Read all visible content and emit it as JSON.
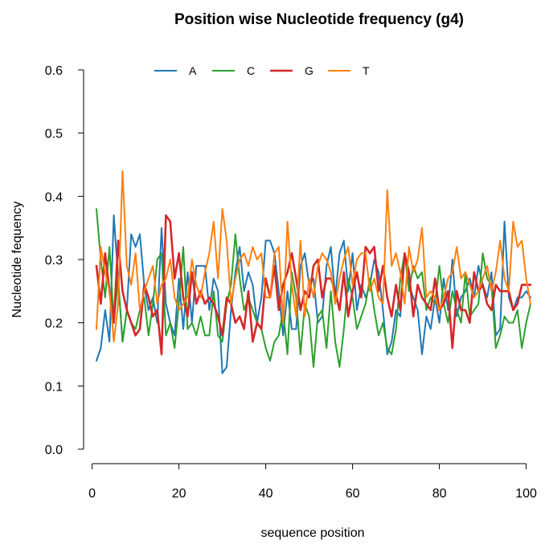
{
  "chart_data": {
    "type": "line",
    "title": "Position wise Nucleotide frequency (g4)",
    "xlabel": "sequence position",
    "ylabel": "Nucleotide fequency",
    "xlim": [
      1,
      101
    ],
    "ylim": [
      0,
      0.6
    ],
    "x_ticks": [
      0,
      20,
      40,
      60,
      80,
      100
    ],
    "y_ticks": [
      0.0,
      0.1,
      0.2,
      0.3,
      0.4,
      0.5,
      0.6
    ],
    "x_tick_labels": [
      "0",
      "20",
      "40",
      "60",
      "80",
      "100"
    ],
    "y_tick_labels": [
      "0.0",
      "0.1",
      "0.2",
      "0.3",
      "0.4",
      "0.5",
      "0.6"
    ],
    "grid": false,
    "legend_position": "top",
    "x": [
      1,
      2,
      3,
      4,
      5,
      6,
      7,
      8,
      9,
      10,
      11,
      12,
      13,
      14,
      15,
      16,
      17,
      18,
      19,
      20,
      21,
      22,
      23,
      24,
      25,
      26,
      27,
      28,
      29,
      30,
      31,
      32,
      33,
      34,
      35,
      36,
      37,
      38,
      39,
      40,
      41,
      42,
      43,
      44,
      45,
      46,
      47,
      48,
      49,
      50,
      51,
      52,
      53,
      54,
      55,
      56,
      57,
      58,
      59,
      60,
      61,
      62,
      63,
      64,
      65,
      66,
      67,
      68,
      69,
      70,
      71,
      72,
      73,
      74,
      75,
      76,
      77,
      78,
      79,
      80,
      81,
      82,
      83,
      84,
      85,
      86,
      87,
      88,
      89,
      90,
      91,
      92,
      93,
      94,
      95,
      96,
      97,
      98,
      99,
      100,
      101
    ],
    "series": [
      {
        "name": "A",
        "color": "#1f77b4",
        "values": [
          0.14,
          0.16,
          0.22,
          0.17,
          0.37,
          0.27,
          0.17,
          0.22,
          0.34,
          0.32,
          0.34,
          0.26,
          0.22,
          0.24,
          0.2,
          0.35,
          0.23,
          0.2,
          0.18,
          0.27,
          0.19,
          0.28,
          0.2,
          0.29,
          0.29,
          0.29,
          0.22,
          0.27,
          0.25,
          0.12,
          0.13,
          0.22,
          0.28,
          0.32,
          0.25,
          0.28,
          0.26,
          0.2,
          0.24,
          0.33,
          0.33,
          0.31,
          0.25,
          0.18,
          0.25,
          0.19,
          0.19,
          0.29,
          0.31,
          0.26,
          0.27,
          0.2,
          0.21,
          0.29,
          0.32,
          0.24,
          0.31,
          0.33,
          0.25,
          0.31,
          0.22,
          0.26,
          0.24,
          0.26,
          0.3,
          0.28,
          0.22,
          0.15,
          0.17,
          0.22,
          0.21,
          0.31,
          0.26,
          0.24,
          0.22,
          0.15,
          0.21,
          0.19,
          0.24,
          0.2,
          0.27,
          0.22,
          0.3,
          0.21,
          0.24,
          0.25,
          0.27,
          0.24,
          0.29,
          0.26,
          0.24,
          0.28,
          0.18,
          0.19,
          0.36,
          0.24,
          0.22,
          0.24,
          0.24,
          0.25,
          0.24
        ]
      },
      {
        "name": "C",
        "color": "#2ca02c",
        "values": [
          0.38,
          0.3,
          0.24,
          0.32,
          0.2,
          0.27,
          0.17,
          0.22,
          0.2,
          0.19,
          0.22,
          0.24,
          0.18,
          0.23,
          0.3,
          0.31,
          0.18,
          0.2,
          0.16,
          0.23,
          0.32,
          0.19,
          0.2,
          0.18,
          0.21,
          0.18,
          0.18,
          0.25,
          0.18,
          0.17,
          0.23,
          0.26,
          0.34,
          0.27,
          0.22,
          0.24,
          0.22,
          0.2,
          0.19,
          0.16,
          0.14,
          0.17,
          0.18,
          0.22,
          0.15,
          0.28,
          0.24,
          0.15,
          0.23,
          0.21,
          0.13,
          0.21,
          0.22,
          0.16,
          0.25,
          0.17,
          0.13,
          0.19,
          0.27,
          0.24,
          0.19,
          0.21,
          0.23,
          0.27,
          0.22,
          0.18,
          0.2,
          0.16,
          0.15,
          0.19,
          0.27,
          0.31,
          0.25,
          0.29,
          0.27,
          0.28,
          0.22,
          0.24,
          0.23,
          0.29,
          0.23,
          0.2,
          0.25,
          0.22,
          0.2,
          0.28,
          0.21,
          0.22,
          0.23,
          0.31,
          0.27,
          0.26,
          0.16,
          0.18,
          0.21,
          0.2,
          0.2,
          0.22,
          0.16,
          0.2,
          0.23
        ]
      },
      {
        "name": "G",
        "color": "#d62728",
        "values": [
          0.29,
          0.23,
          0.31,
          0.25,
          0.2,
          0.33,
          0.25,
          0.22,
          0.2,
          0.18,
          0.19,
          0.26,
          0.24,
          0.21,
          0.22,
          0.15,
          0.37,
          0.36,
          0.27,
          0.31,
          0.24,
          0.21,
          0.28,
          0.23,
          0.25,
          0.23,
          0.24,
          0.23,
          0.21,
          0.18,
          0.24,
          0.23,
          0.2,
          0.21,
          0.19,
          0.25,
          0.17,
          0.2,
          0.19,
          0.27,
          0.24,
          0.29,
          0.22,
          0.26,
          0.28,
          0.31,
          0.27,
          0.22,
          0.25,
          0.24,
          0.29,
          0.3,
          0.24,
          0.27,
          0.27,
          0.25,
          0.22,
          0.28,
          0.21,
          0.25,
          0.28,
          0.24,
          0.32,
          0.31,
          0.32,
          0.25,
          0.29,
          0.24,
          0.21,
          0.26,
          0.22,
          0.31,
          0.28,
          0.21,
          0.26,
          0.24,
          0.23,
          0.22,
          0.27,
          0.22,
          0.23,
          0.25,
          0.16,
          0.25,
          0.22,
          0.22,
          0.2,
          0.28,
          0.25,
          0.26,
          0.23,
          0.22,
          0.26,
          0.25,
          0.25,
          0.25,
          0.22,
          0.23,
          0.26,
          0.26,
          0.26
        ]
      },
      {
        "name": "T",
        "color": "#ff7f0e",
        "values": [
          0.19,
          0.32,
          0.28,
          0.25,
          0.17,
          0.23,
          0.44,
          0.29,
          0.26,
          0.31,
          0.22,
          0.25,
          0.27,
          0.29,
          0.23,
          0.26,
          0.27,
          0.3,
          0.24,
          0.22,
          0.23,
          0.24,
          0.3,
          0.26,
          0.24,
          0.28,
          0.31,
          0.36,
          0.27,
          0.38,
          0.33,
          0.23,
          0.27,
          0.3,
          0.31,
          0.29,
          0.32,
          0.3,
          0.31,
          0.24,
          0.24,
          0.31,
          0.32,
          0.2,
          0.36,
          0.26,
          0.21,
          0.33,
          0.21,
          0.27,
          0.24,
          0.29,
          0.31,
          0.3,
          0.28,
          0.23,
          0.27,
          0.3,
          0.32,
          0.26,
          0.3,
          0.31,
          0.31,
          0.25,
          0.27,
          0.24,
          0.23,
          0.41,
          0.29,
          0.31,
          0.28,
          0.23,
          0.32,
          0.28,
          0.3,
          0.35,
          0.24,
          0.25,
          0.24,
          0.22,
          0.24,
          0.27,
          0.28,
          0.32,
          0.27,
          0.28,
          0.26,
          0.24,
          0.25,
          0.27,
          0.29,
          0.25,
          0.28,
          0.33,
          0.27,
          0.25,
          0.36,
          0.32,
          0.33,
          0.27,
          0.23
        ]
      }
    ]
  }
}
